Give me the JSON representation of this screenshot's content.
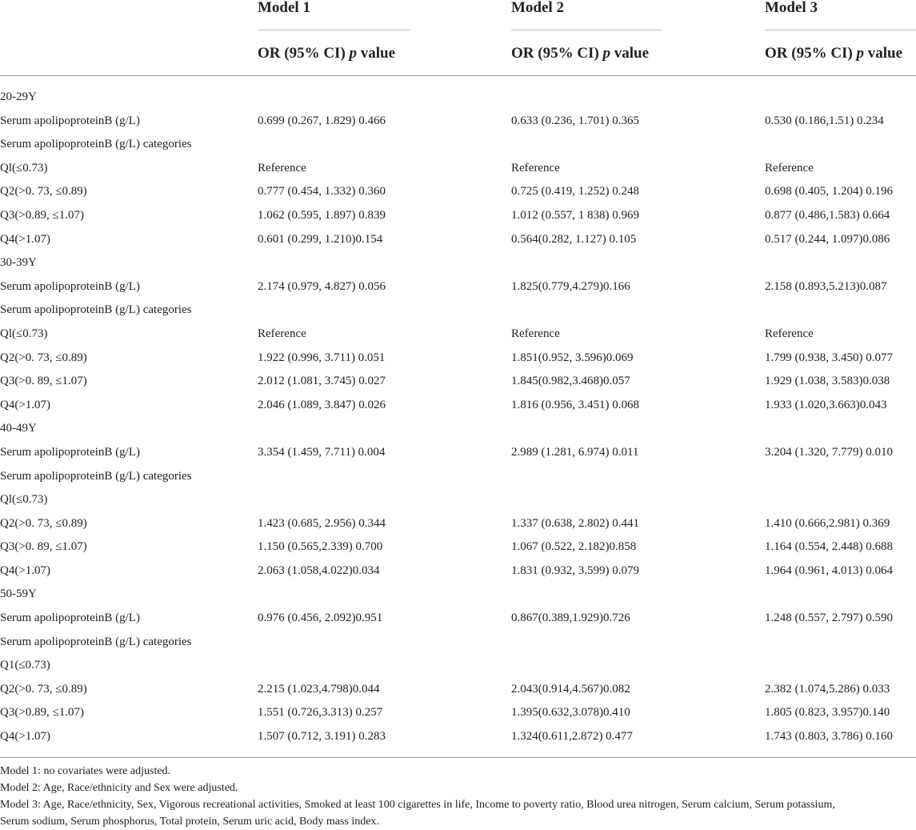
{
  "header": {
    "models": [
      "Model 1",
      "Model 2",
      "Model 3"
    ],
    "subheader_prefix": "OR (95% CI) ",
    "subheader_p": "p",
    "subheader_suffix": " value"
  },
  "rows": [
    {
      "label": "20-29Y",
      "m1": "",
      "m2": "",
      "m3": ""
    },
    {
      "label": "Serum apolipoproteinB (g/L)",
      "m1": "0.699 (0.267, 1.829) 0.466",
      "m2": "0.633 (0.236, 1.701) 0.365",
      "m3": "0.530 (0.186,1.51) 0.234"
    },
    {
      "label": "Serum apolipoproteinB (g/L) categories",
      "m1": "",
      "m2": "",
      "m3": ""
    },
    {
      "label": "Ql(≤0.73)",
      "m1": "Reference",
      "m2": "Reference",
      "m3": "Reference"
    },
    {
      "label": "Q2(>0. 73, ≤0.89)",
      "m1": "0.777 (0.454, 1.332) 0.360",
      "m2": "0.725 (0.419, 1.252) 0.248",
      "m3": "0.698 (0.405, 1.204) 0.196"
    },
    {
      "label": "Q3(>0.89, ≤1.07)",
      "m1": "1.062 (0.595, 1.897) 0.839",
      "m2": "1.012 (0.557, 1 838) 0.969",
      "m3": "0.877 (0.486,1.583) 0.664"
    },
    {
      "label": "Q4(>1.07)",
      "m1": "0.601 (0.299, 1.210)0.154",
      "m2": "0.564(0.282, 1.127) 0.105",
      "m3": "0.517 (0.244, 1.097)0.086"
    },
    {
      "label": "30-39Y",
      "m1": "",
      "m2": "",
      "m3": ""
    },
    {
      "label": "Serum apolipoproteinB (g/L)",
      "m1": "2.174 (0.979, 4.827) 0.056",
      "m2": "1.825(0.779,4.279)0.166",
      "m3": "2.158 (0.893,5.213)0.087"
    },
    {
      "label": "Serum apolipoproteinB (g/L) categories",
      "m1": "",
      "m2": "",
      "m3": ""
    },
    {
      "label": "Ql(≤0.73)",
      "m1": "Reference",
      "m2": "Reference",
      "m3": "Reference"
    },
    {
      "label": "Q2(>0. 73, ≤0.89)",
      "m1": "1.922 (0.996, 3.711) 0.051",
      "m2": "1.851(0.952, 3.596)0.069",
      "m3": "1.799 (0.938, 3.450) 0.077"
    },
    {
      "label": "Q3(>0. 89, ≤1.07)",
      "m1": "2.012 (1.081, 3.745) 0.027",
      "m2": "1.845(0.982,3.468)0.057",
      "m3": "1.929 (1.038, 3.583)0.038"
    },
    {
      "label": "Q4(>1.07)",
      "m1": "2.046 (1.089, 3.847) 0.026",
      "m2": "1.816 (0.956, 3.451) 0.068",
      "m3": "1.933 (1.020,3.663)0.043"
    },
    {
      "label": "40-49Y",
      "m1": "",
      "m2": "",
      "m3": ""
    },
    {
      "label": "Serum apolipoproteinB (g/L)",
      "m1": "3.354 (1.459, 7.711) 0.004",
      "m2": "2.989 (1.281, 6.974) 0.011",
      "m3": "3.204 (1.320, 7.779) 0.010"
    },
    {
      "label": "Serum apolipoproteinB (g/L) categories",
      "m1": "",
      "m2": "",
      "m3": ""
    },
    {
      "label": "Ql(≤0.73)",
      "m1": "",
      "m2": "",
      "m3": ""
    },
    {
      "label": "Q2(>0. 73, ≤0.89)",
      "m1": "1.423 (0.685, 2.956) 0.344",
      "m2": "1.337 (0.638, 2.802) 0.441",
      "m3": "1.410 (0.666,2.981) 0.369"
    },
    {
      "label": "Q3(>0. 89, ≤1.07)",
      "m1": "1.150 (0.565,2.339) 0.700",
      "m2": "1.067 (0.522, 2.182)0.858",
      "m3": "1.164 (0.554, 2.448) 0.688"
    },
    {
      "label": "Q4(>1.07)",
      "m1": "2.063 (1.058,4.022)0.034",
      "m2": "1.831 (0.932, 3.599) 0.079",
      "m3": "1.964 (0.961, 4.013) 0.064"
    },
    {
      "label": "50-59Y",
      "m1": "",
      "m2": "",
      "m3": ""
    },
    {
      "label": "Serum apolipoproteinB (g/L)",
      "m1": "0.976 (0.456, 2.092)0.951",
      "m2": "0.867(0.389,1.929)0.726",
      "m3": "1.248 (0.557, 2.797) 0.590"
    },
    {
      "label": "Serum apolipoproteinB (g/L) categories",
      "m1": "",
      "m2": "",
      "m3": ""
    },
    {
      "label": "Q1(≤0.73)",
      "m1": "",
      "m2": "",
      "m3": ""
    },
    {
      "label": "Q2(>0. 73, ≤0.89)",
      "m1": "2.215 (1.023,4.798)0.044",
      "m2": "2.043(0.914,4.567)0.082",
      "m3": "2.382 (1.074,5.286) 0.033"
    },
    {
      "label": "Q3(>0.89, ≤1.07)",
      "m1": "1.551 (0.726,3.313) 0.257",
      "m2": "1.395(0.632,3.078)0.410",
      "m3": "1.805 (0.823, 3.957)0.140"
    },
    {
      "label": "Q4(>1.07)",
      "m1": "1.507 (0.712, 3.191) 0.283",
      "m2": "1.324(0.611,2.872) 0.477",
      "m3": "1.743 (0.803, 3.786) 0.160"
    }
  ],
  "notes": [
    "Model 1: no covariates were adjusted.",
    "Model 2: Age, Race/ethnicity and Sex were adjusted.",
    "Model 3: Age, Race/ethnicity, Sex, Vigorous recreational activities, Smoked at least 100 cigarettes in life, Income to poverty ratio, Blood urea nitrogen, Serum calcium, Serum potassium,",
    "Serum sodium, Serum phosphorus, Total protein, Serum uric acid, Body mass index."
  ]
}
